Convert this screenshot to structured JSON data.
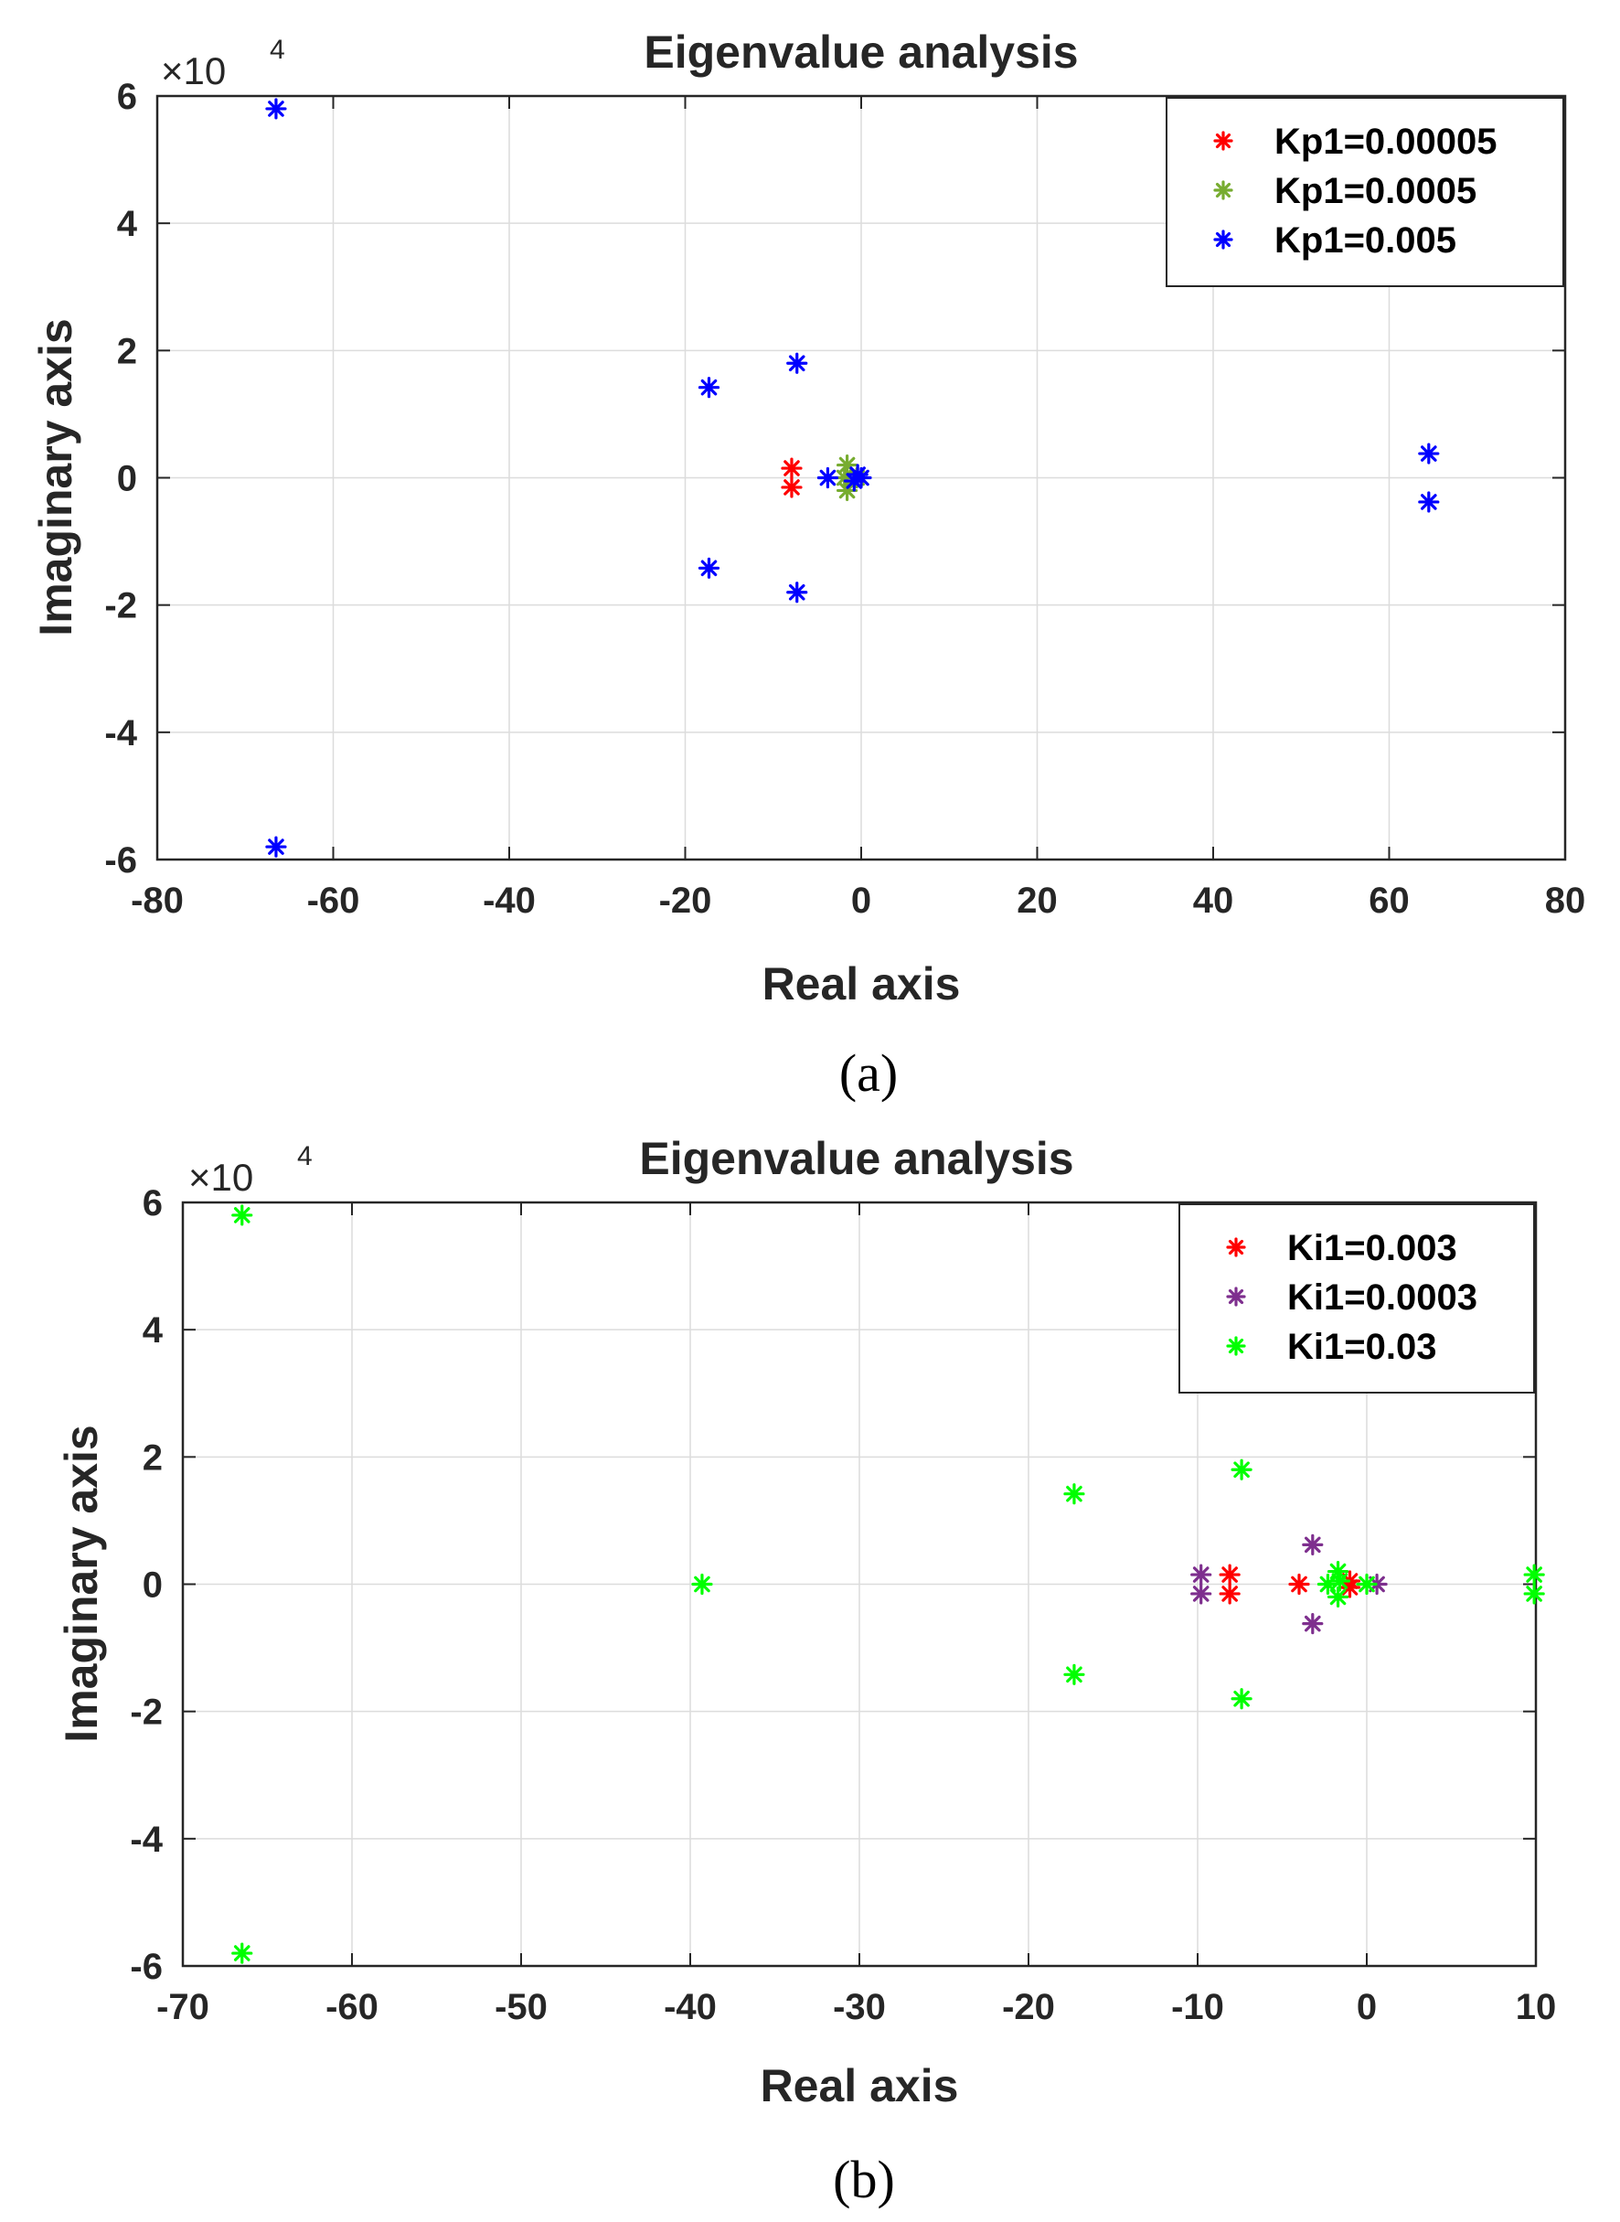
{
  "chart_data": [
    {
      "type": "scatter",
      "title": "Eigenvalue analysis",
      "xlabel": "Real axis",
      "ylabel": "Imaginary axis",
      "caption": "(a)",
      "exponent": {
        "base": "×10",
        "power": "4"
      },
      "xlim": [
        -80,
        80
      ],
      "ylim": [
        -6,
        6
      ],
      "xticks": [
        -80,
        -60,
        -40,
        -20,
        0,
        20,
        40,
        60,
        80
      ],
      "yticks": [
        -6,
        -4,
        -2,
        0,
        2,
        4,
        6
      ],
      "grid": true,
      "legend_position": "top-right",
      "series": [
        {
          "name": "Kp1=0.00005",
          "color": "#ff0000",
          "points": [
            [
              -7.9,
              0.15
            ],
            [
              -7.9,
              -0.15
            ]
          ]
        },
        {
          "name": "Kp1=0.0005",
          "color": "#77ac30",
          "points": [
            [
              -1.6,
              0.2
            ],
            [
              -1.6,
              -0.2
            ],
            [
              -1.9,
              0
            ],
            [
              -0.5,
              0
            ]
          ]
        },
        {
          "name": "Kp1=0.005",
          "color": "#0000ff",
          "points": [
            [
              -66.5,
              5.8
            ],
            [
              -66.5,
              -5.8
            ],
            [
              -17.3,
              1.42
            ],
            [
              -17.3,
              -1.42
            ],
            [
              -7.3,
              1.8
            ],
            [
              -7.3,
              -1.8
            ],
            [
              -3.8,
              0
            ],
            [
              -0.4,
              0.05
            ],
            [
              0,
              0
            ],
            [
              -0.8,
              -0.05
            ],
            [
              64.5,
              0.38
            ],
            [
              64.5,
              -0.38
            ]
          ]
        }
      ]
    },
    {
      "type": "scatter",
      "title": "Eigenvalue analysis",
      "xlabel": "Real axis",
      "ylabel": "Imaginary axis",
      "caption": "(b)",
      "exponent": {
        "base": "×10",
        "power": "4"
      },
      "xlim": [
        -70,
        10
      ],
      "ylim": [
        -6,
        6
      ],
      "xticks": [
        -70,
        -60,
        -50,
        -40,
        -30,
        -20,
        -10,
        0,
        10
      ],
      "yticks": [
        -6,
        -4,
        -2,
        0,
        2,
        4,
        6
      ],
      "grid": true,
      "legend_position": "top-right",
      "series": [
        {
          "name": "Ki1=0.003",
          "color": "#ff0000",
          "points": [
            [
              -8.1,
              0.15
            ],
            [
              -8.1,
              -0.15
            ],
            [
              -4,
              0
            ],
            [
              -1,
              0.05
            ],
            [
              -1,
              -0.05
            ]
          ]
        },
        {
          "name": "Ki1=0.0003",
          "color": "#7e2f8e",
          "points": [
            [
              -9.8,
              0.15
            ],
            [
              -9.8,
              -0.15
            ],
            [
              -3.2,
              0.62
            ],
            [
              -3.2,
              -0.62
            ],
            [
              0.6,
              0
            ]
          ]
        },
        {
          "name": "Ki1=0.03",
          "color": "#00ff00",
          "points": [
            [
              -66.5,
              5.8
            ],
            [
              -66.5,
              -5.8
            ],
            [
              -39.3,
              0
            ],
            [
              -17.3,
              1.42
            ],
            [
              -17.3,
              -1.42
            ],
            [
              -7.4,
              1.8
            ],
            [
              -7.4,
              -1.8
            ],
            [
              -2.3,
              0
            ],
            [
              -1.7,
              0.2
            ],
            [
              -1.7,
              -0.2
            ],
            [
              -1.6,
              0.05
            ],
            [
              0,
              0
            ],
            [
              9.9,
              0.15
            ],
            [
              9.9,
              -0.15
            ]
          ]
        }
      ]
    }
  ]
}
